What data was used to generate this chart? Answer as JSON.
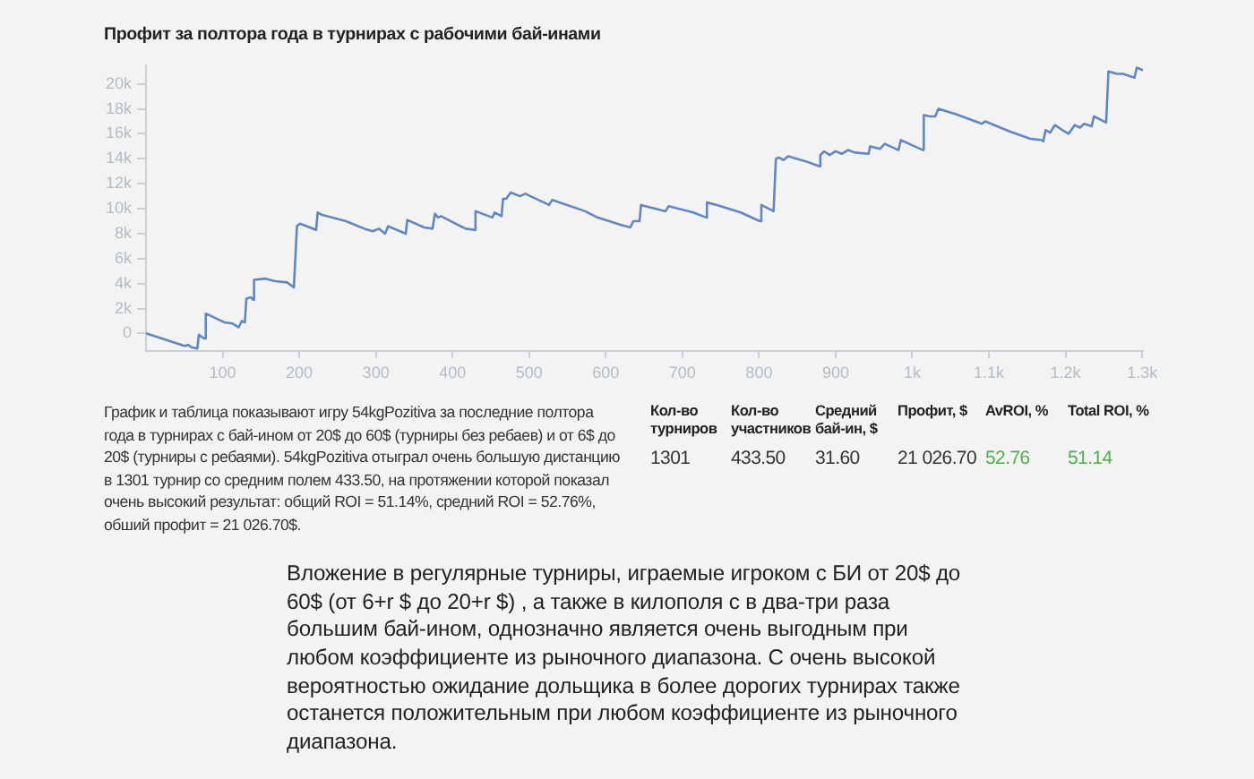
{
  "chart_data": {
    "type": "line",
    "title": "Профит за полтора года в турнирах с рабочими бай-инами",
    "x": [
      1,
      51,
      55,
      59,
      67,
      69,
      76,
      78,
      102,
      113,
      121,
      125,
      129,
      131,
      137,
      140,
      141,
      156,
      168,
      184,
      193,
      197,
      201,
      222,
      224,
      230,
      261,
      285,
      296,
      304,
      312,
      316,
      339,
      341,
      363,
      374,
      377,
      381,
      385,
      417,
      429,
      430,
      452,
      455,
      464,
      466,
      470,
      476,
      488,
      495,
      526,
      530,
      573,
      589,
      620,
      632,
      636,
      644,
      646,
      678,
      682,
      714,
      731,
      732,
      745,
      776,
      801,
      803,
      819,
      822,
      826,
      832,
      838,
      861,
      879,
      880,
      885,
      892,
      900,
      908,
      916,
      925,
      943,
      945,
      958,
      964,
      982,
      985,
      1014,
      1015,
      1023,
      1030,
      1034,
      1056,
      1091,
      1095,
      1127,
      1154,
      1169,
      1171,
      1174,
      1180,
      1186,
      1196,
      1204,
      1212,
      1219,
      1224,
      1234,
      1237,
      1253,
      1256,
      1267,
      1275,
      1290,
      1293,
      1301
    ],
    "values": [
      0,
      -1000,
      -900,
      -1100,
      -1200,
      -100,
      -400,
      1600,
      900,
      800,
      500,
      1000,
      900,
      2800,
      2900,
      2700,
      4300,
      4400,
      4200,
      4100,
      3700,
      8600,
      8800,
      8300,
      9700,
      9500,
      9000,
      8400,
      8200,
      8400,
      8000,
      8600,
      8000,
      9100,
      8500,
      8400,
      9600,
      9300,
      9400,
      8400,
      8300,
      9800,
      9300,
      9700,
      9400,
      10800,
      10800,
      11300,
      11000,
      11200,
      10300,
      10700,
      9800,
      9300,
      8700,
      8500,
      9000,
      9000,
      10300,
      9800,
      10200,
      9700,
      9300,
      10500,
      10300,
      9700,
      9000,
      10300,
      9800,
      14000,
      14100,
      13900,
      14200,
      13800,
      13400,
      14300,
      14600,
      14300,
      14600,
      14400,
      14700,
      14500,
      14400,
      15000,
      14800,
      15200,
      14700,
      15500,
      14700,
      17500,
      17400,
      17400,
      18000,
      17600,
      16800,
      17000,
      16200,
      15600,
      15500,
      15400,
      16300,
      16100,
      16700,
      16300,
      16000,
      16700,
      16500,
      16800,
      16600,
      17400,
      16900,
      21000,
      20800,
      20800,
      20500,
      21300,
      21100
    ],
    "color": "#6387bd",
    "xlim": [
      0,
      1301
    ],
    "xticks": [
      100,
      200,
      300,
      400,
      500,
      600,
      700,
      800,
      900,
      {
        "value": 1000,
        "label": "1k"
      },
      {
        "value": 1100,
        "label": "1.1k"
      },
      {
        "value": 1200,
        "label": "1.2k"
      },
      {
        "value": 1300,
        "label": "1.3k"
      }
    ],
    "ylim": [
      -1400,
      21500
    ],
    "yticks": [
      0,
      {
        "value": 2000,
        "label": "2k"
      },
      {
        "value": 4000,
        "label": "4k"
      },
      {
        "value": 6000,
        "label": "6k"
      },
      {
        "value": 8000,
        "label": "8k"
      },
      {
        "value": 10000,
        "label": "10k"
      },
      {
        "value": 12000,
        "label": "12k"
      },
      {
        "value": 14000,
        "label": "14k"
      },
      {
        "value": 16000,
        "label": "16k"
      },
      {
        "value": 18000,
        "label": "18k"
      },
      {
        "value": 20000,
        "label": "20k"
      }
    ],
    "grid": false,
    "legend": false,
    "annotations": [
      "График и таблица показывают игру 54kgPozitiva за последние полтора года в турнирах с бай-ином от 20$ до 60$ (турниры без ребаев) и от 6$ до 20$ (турниры с ребаями). 54kgPozitiva отыграл очень большую дистанцию в 1301 турнир со средним полем 433.50, на протяжении которой показал очень высокий результат: общий ROI = 51.14%, средний ROI = 52.76%, обший профит = 21 026.70$.",
      "Кол-во турниров",
      "Кол-во участников",
      "Средний бай-ин, $",
      "Профит, $",
      "AvROI, %",
      "Total ROI, %",
      "1301",
      "433.50",
      "31.60",
      "21 026.70",
      "52.76",
      "51.14",
      "Вложение в регулярные турниры, играемые игроком с БИ от 20$ до 60$ (от 6+r $ до 20+r $) , а также в килополя с в два-три раза большим бай-ином, однозначно является очень выгодным при любом коэффициенте из рыночного диапазона. С очень высокой вероятностью ожидание дольщика в более дорогих турнирах также останется положительным при любом коэффициенте из рыночного диапазона."
    ]
  }
}
